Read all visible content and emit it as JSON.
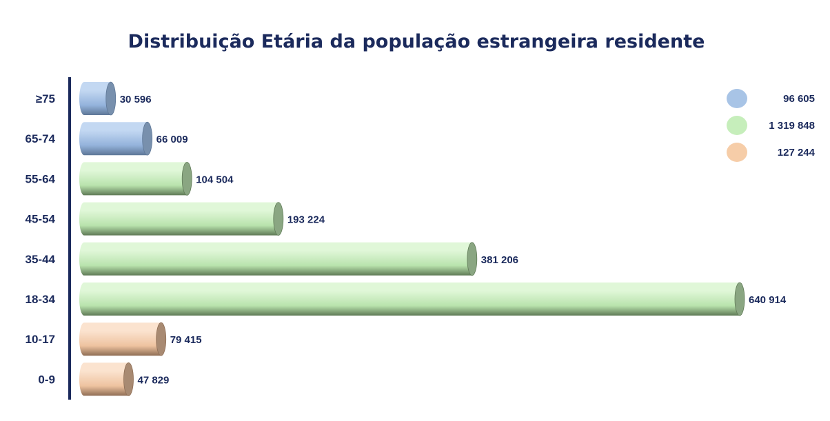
{
  "chart_data": {
    "type": "bar",
    "orientation": "horizontal",
    "title": "Distribuição Etária da população estrangeira residente",
    "categories": [
      "≥75",
      "65-74",
      "55-64",
      "45-54",
      "35-44",
      "18-34",
      "10-17",
      "0-9"
    ],
    "values": [
      30596,
      66009,
      104504,
      193224,
      381206,
      640914,
      79415,
      47829
    ],
    "value_labels": [
      "30 596",
      "66 009",
      "104 504",
      "193 224",
      "381 206",
      "640 914",
      "79 415",
      "47 829"
    ],
    "groups": [
      "blue",
      "blue",
      "green",
      "green",
      "green",
      "green",
      "peach",
      "peach"
    ],
    "legend": {
      "placement": "top-right",
      "items": [
        {
          "group": "blue",
          "label": "96 605"
        },
        {
          "group": "green",
          "label": "1 319 848"
        },
        {
          "group": "peach",
          "label": "127 244"
        }
      ]
    },
    "colors": {
      "blue": {
        "light": "#c3d8f2",
        "mid": "#94b3dc",
        "dark": "#5e7797",
        "cap": "#7890ad",
        "legend": "#a8c4e6"
      },
      "green": {
        "light": "#e0f7d8",
        "mid": "#b9e3ad",
        "dark": "#5f7a56",
        "cap": "#8aa682",
        "legend": "#c6eebb"
      },
      "peach": {
        "light": "#fbe3cf",
        "mid": "#eec3a0",
        "dark": "#8f6e55",
        "cap": "#a88a72",
        "legend": "#f6cda8"
      }
    },
    "axis_color": "#1b2a5c",
    "xlim": [
      0,
      640914
    ],
    "grid": false,
    "xlabel": "",
    "ylabel": ""
  }
}
